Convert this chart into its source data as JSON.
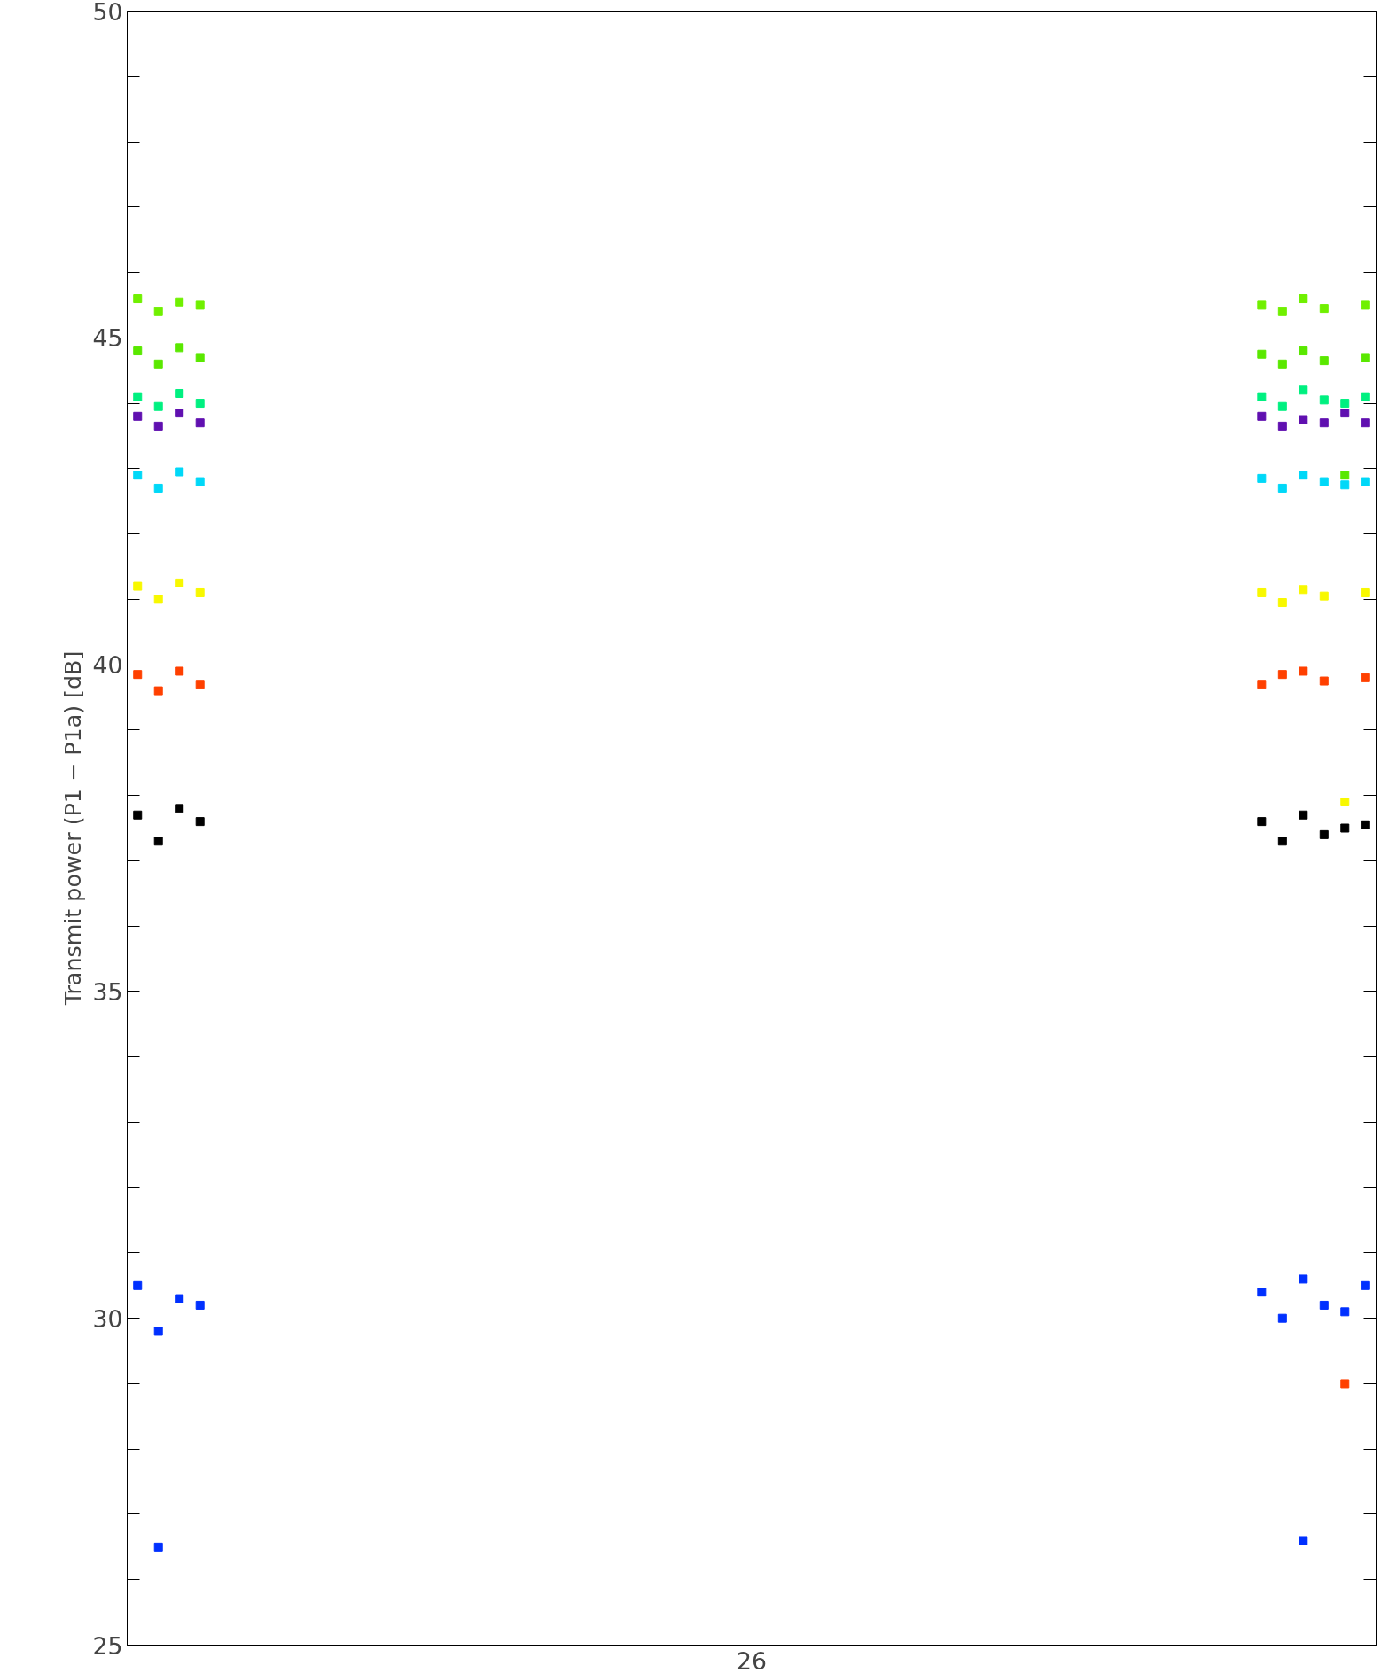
{
  "chart_data": {
    "type": "scatter",
    "ylabel": "Transmit power (P1 − P1a) [dB]",
    "annotations": [
      "26"
    ],
    "categories": [
      null,
      null,
      null,
      null,
      null,
      null,
      null,
      null,
      null,
      null,
      null,
      null,
      null,
      null,
      null,
      null,
      null,
      null,
      null,
      null,
      null,
      null,
      null,
      null,
      null,
      null,
      null,
      null,
      null,
      null,
      null,
      null,
      null,
      null,
      null,
      null,
      null,
      null,
      null,
      null,
      null,
      null,
      null,
      null,
      null,
      null,
      null,
      null,
      null,
      null,
      null,
      null,
      null,
      null,
      null,
      null,
      null,
      null,
      null,
      null
    ],
    "ylim": [
      25,
      50
    ],
    "yticks": [
      {
        "value": 25,
        "label": "25"
      },
      {
        "value": 26,
        "label": null
      },
      {
        "value": 27,
        "label": null
      },
      {
        "value": 28,
        "label": null
      },
      {
        "value": 29,
        "label": null
      },
      {
        "value": 30,
        "label": "30"
      },
      {
        "value": 31,
        "label": null
      },
      {
        "value": 32,
        "label": null
      },
      {
        "value": 33,
        "label": null
      },
      {
        "value": 34,
        "label": null
      },
      {
        "value": 35,
        "label": "35"
      },
      {
        "value": 36,
        "label": null
      },
      {
        "value": 37,
        "label": null
      },
      {
        "value": 38,
        "label": null
      },
      {
        "value": 39,
        "label": null
      },
      {
        "value": 40,
        "label": "40"
      },
      {
        "value": 41,
        "label": null
      },
      {
        "value": 42,
        "label": null
      },
      {
        "value": 43,
        "label": null
      },
      {
        "value": 44,
        "label": null
      },
      {
        "value": 45,
        "label": "45"
      },
      {
        "value": 46,
        "label": null
      },
      {
        "value": 47,
        "label": null
      },
      {
        "value": 48,
        "label": null
      },
      {
        "value": 49,
        "label": null
      },
      {
        "value": 50,
        "label": "50"
      }
    ],
    "tick_labels": "y",
    "grid": false,
    "marker": "square",
    "series": [
      {
        "color": "#70f000",
        "values": [
          45.6,
          45.4,
          45.55,
          45.5,
          null,
          null,
          null,
          null,
          null,
          null,
          null,
          null,
          null,
          null,
          null,
          null,
          null,
          null,
          null,
          null,
          null,
          null,
          null,
          null,
          null,
          null,
          null,
          null,
          null,
          null,
          null,
          null,
          null,
          null,
          null,
          null,
          null,
          null,
          null,
          null,
          null,
          null,
          null,
          null,
          null,
          null,
          null,
          null,
          null,
          null,
          null,
          null,
          null,
          null,
          45.5,
          45.4,
          45.6,
          45.45,
          null,
          45.5
        ]
      },
      {
        "color": "#5ae800",
        "values": [
          44.8,
          44.6,
          44.85,
          44.7,
          null,
          null,
          null,
          null,
          null,
          null,
          null,
          null,
          null,
          null,
          null,
          null,
          null,
          null,
          null,
          null,
          null,
          null,
          null,
          null,
          null,
          null,
          null,
          null,
          null,
          null,
          null,
          null,
          null,
          null,
          null,
          null,
          null,
          null,
          null,
          null,
          null,
          null,
          null,
          null,
          null,
          null,
          null,
          null,
          null,
          null,
          null,
          null,
          null,
          null,
          44.75,
          44.6,
          44.8,
          44.65,
          42.9,
          44.7
        ]
      },
      {
        "color": "#00f080",
        "values": [
          44.1,
          43.95,
          44.15,
          44.0,
          null,
          null,
          null,
          null,
          null,
          null,
          null,
          null,
          null,
          null,
          null,
          null,
          null,
          null,
          null,
          null,
          null,
          null,
          null,
          null,
          null,
          null,
          null,
          null,
          null,
          null,
          null,
          null,
          null,
          null,
          null,
          null,
          null,
          null,
          null,
          null,
          null,
          null,
          null,
          null,
          null,
          null,
          null,
          null,
          null,
          null,
          null,
          null,
          null,
          null,
          44.1,
          43.95,
          44.2,
          44.05,
          44.0,
          44.1
        ]
      },
      {
        "color": "#6010b0",
        "values": [
          43.8,
          43.65,
          43.85,
          43.7,
          null,
          null,
          null,
          null,
          null,
          null,
          null,
          null,
          null,
          null,
          null,
          null,
          null,
          null,
          null,
          null,
          null,
          null,
          null,
          null,
          null,
          null,
          null,
          null,
          null,
          null,
          null,
          null,
          null,
          null,
          null,
          null,
          null,
          null,
          null,
          null,
          null,
          null,
          null,
          null,
          null,
          null,
          null,
          null,
          null,
          null,
          null,
          null,
          null,
          null,
          43.8,
          43.65,
          43.75,
          43.7,
          43.85,
          43.7
        ]
      },
      {
        "color": "#00d8f8",
        "values": [
          42.9,
          42.7,
          42.95,
          42.8,
          null,
          null,
          null,
          null,
          null,
          null,
          null,
          null,
          null,
          null,
          null,
          null,
          null,
          null,
          null,
          null,
          null,
          null,
          null,
          null,
          null,
          null,
          null,
          null,
          null,
          null,
          null,
          null,
          null,
          null,
          null,
          null,
          null,
          null,
          null,
          null,
          null,
          null,
          null,
          null,
          null,
          null,
          null,
          null,
          null,
          null,
          null,
          null,
          null,
          null,
          42.85,
          42.7,
          42.9,
          42.8,
          42.75,
          42.8
        ]
      },
      {
        "color": "#f8f800",
        "values": [
          41.2,
          41.0,
          41.25,
          41.1,
          null,
          null,
          null,
          null,
          null,
          null,
          null,
          null,
          null,
          null,
          null,
          null,
          null,
          null,
          null,
          null,
          null,
          null,
          null,
          null,
          null,
          null,
          null,
          null,
          null,
          null,
          null,
          null,
          null,
          null,
          null,
          null,
          null,
          null,
          null,
          null,
          null,
          null,
          null,
          null,
          null,
          null,
          null,
          null,
          null,
          null,
          null,
          null,
          null,
          null,
          41.1,
          40.95,
          41.15,
          41.05,
          37.9,
          41.1
        ]
      },
      {
        "color": "#ff4000",
        "values": [
          39.85,
          39.6,
          39.9,
          39.7,
          null,
          null,
          null,
          null,
          null,
          null,
          null,
          null,
          null,
          null,
          null,
          null,
          null,
          null,
          null,
          null,
          null,
          null,
          null,
          null,
          null,
          null,
          null,
          null,
          null,
          null,
          null,
          null,
          null,
          null,
          null,
          null,
          null,
          null,
          null,
          null,
          null,
          null,
          null,
          null,
          null,
          null,
          null,
          null,
          null,
          null,
          null,
          null,
          null,
          null,
          39.7,
          39.85,
          39.9,
          39.75,
          29.0,
          39.8
        ]
      },
      {
        "color": "#000000",
        "values": [
          37.7,
          37.3,
          37.8,
          37.6,
          null,
          null,
          null,
          null,
          null,
          null,
          null,
          null,
          null,
          null,
          null,
          null,
          null,
          null,
          null,
          null,
          null,
          null,
          null,
          null,
          null,
          null,
          null,
          null,
          null,
          null,
          null,
          null,
          null,
          null,
          null,
          null,
          null,
          null,
          null,
          null,
          null,
          null,
          null,
          null,
          null,
          null,
          null,
          null,
          null,
          null,
          null,
          null,
          null,
          null,
          37.6,
          37.3,
          37.7,
          37.4,
          37.5,
          37.55
        ]
      },
      {
        "color": "#0030ff",
        "values": [
          30.5,
          29.8,
          30.3,
          30.2,
          null,
          null,
          null,
          null,
          null,
          null,
          null,
          null,
          null,
          null,
          null,
          null,
          null,
          null,
          null,
          null,
          null,
          null,
          null,
          null,
          null,
          null,
          null,
          null,
          null,
          null,
          null,
          null,
          null,
          null,
          null,
          null,
          null,
          null,
          null,
          null,
          null,
          null,
          null,
          null,
          null,
          null,
          null,
          null,
          null,
          null,
          null,
          null,
          null,
          null,
          30.4,
          30.0,
          30.6,
          30.2,
          30.1,
          30.5
        ]
      },
      {
        "color": "#0030ff",
        "values": [
          null,
          26.5,
          null,
          null,
          null,
          null,
          null,
          null,
          null,
          null,
          null,
          null,
          null,
          null,
          null,
          null,
          null,
          null,
          null,
          null,
          null,
          null,
          null,
          null,
          null,
          null,
          null,
          null,
          null,
          null,
          null,
          null,
          null,
          null,
          null,
          null,
          null,
          null,
          null,
          null,
          null,
          null,
          null,
          null,
          null,
          null,
          null,
          null,
          null,
          null,
          null,
          null,
          null,
          null,
          null,
          null,
          26.6,
          null,
          null,
          null
        ]
      }
    ]
  }
}
